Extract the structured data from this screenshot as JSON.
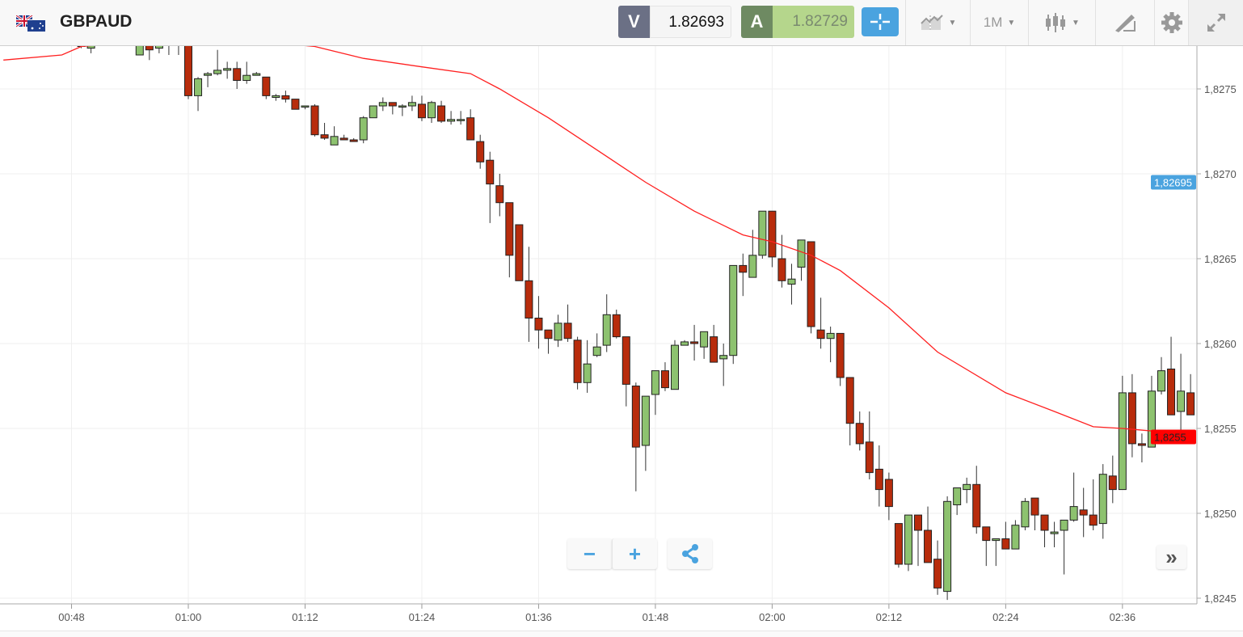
{
  "header": {
    "symbol": "GBPAUD",
    "flag_icon": "gb-au-flag-icon",
    "sell_label": "V",
    "sell_price": "1.82693",
    "buy_label": "A",
    "buy_price": "1.82729",
    "timeframe": "1M",
    "icons": [
      "crosshair-icon",
      "indicators-icon",
      "timeframe-dropdown",
      "candles-icon",
      "drawing-icon",
      "gear-icon",
      "fullscreen-icon"
    ]
  },
  "controls": {
    "zoom_out": "−",
    "zoom_in": "+",
    "share_icon": "share-icon",
    "scroll_right": "»"
  },
  "colors": {
    "up": "#8dc26f",
    "down": "#b82c0c",
    "ma": "#ff2020",
    "accent": "#4aa3df",
    "sell": "#6b7085",
    "buy_dark": "#6e8a62",
    "buy_light": "#b5d68c"
  },
  "chart_data": {
    "type": "candlestick",
    "y_ticks": [
      "1,8275",
      "1,8270",
      "1,8265",
      "1,8260",
      "1,8255",
      "1,8250",
      "1,8245"
    ],
    "y_tick_values": [
      1.8275,
      1.827,
      1.8265,
      1.826,
      1.8255,
      1.825,
      1.8245
    ],
    "x_ticks": [
      "00:48",
      "01:00",
      "01:12",
      "01:24",
      "01:36",
      "01:48",
      "02:00",
      "02:12",
      "02:24",
      "02:36"
    ],
    "grid": true,
    "price_labels": [
      {
        "text": "1,82695",
        "value": 1.82695,
        "color": "#4aa3df"
      },
      {
        "text": "1,8255",
        "value": 1.82545,
        "color": "#ff0000"
      }
    ],
    "candles_columns": [
      "time",
      "open",
      "high",
      "low",
      "close"
    ],
    "candles": [
      [
        "00:49",
        1.82777,
        1.82779,
        1.82774,
        1.82775
      ],
      [
        "00:50",
        1.82774,
        1.82779,
        1.82771,
        1.82776
      ],
      [
        "00:55",
        1.8277,
        1.8278,
        1.8277,
        1.82777
      ],
      [
        "00:56",
        1.82777,
        1.82779,
        1.82767,
        1.82773
      ],
      [
        "00:57",
        1.82774,
        1.82779,
        1.82771,
        1.82776
      ],
      [
        "00:58",
        1.82779,
        1.82783,
        1.8277,
        1.82779
      ],
      [
        "00:59",
        1.8278,
        1.82784,
        1.8277,
        1.8278
      ],
      [
        "01:00",
        1.82778,
        1.8278,
        1.82744,
        1.82746
      ],
      [
        "01:01",
        1.82746,
        1.82757,
        1.82737,
        1.82756
      ],
      [
        "01:02",
        1.82758,
        1.8276,
        1.82751,
        1.82759
      ],
      [
        "01:03",
        1.82759,
        1.82773,
        1.82758,
        1.82761
      ],
      [
        "01:04",
        1.82761,
        1.82766,
        1.82756,
        1.82762
      ],
      [
        "01:05",
        1.82762,
        1.82766,
        1.8275,
        1.82755
      ],
      [
        "01:06",
        1.82755,
        1.82766,
        1.82753,
        1.82758
      ],
      [
        "01:07",
        1.82758,
        1.8276,
        1.82758,
        1.82759
      ],
      [
        "01:08",
        1.82757,
        1.82757,
        1.82744,
        1.82746
      ],
      [
        "01:09",
        1.82745,
        1.82747,
        1.82743,
        1.82746
      ],
      [
        "01:10",
        1.82746,
        1.82749,
        1.82742,
        1.82744
      ],
      [
        "01:11",
        1.82744,
        1.82744,
        1.82738,
        1.82738
      ],
      [
        "01:12",
        1.8274,
        1.8274,
        1.82738,
        1.8274
      ],
      [
        "01:13",
        1.8274,
        1.82741,
        1.82722,
        1.82723
      ],
      [
        "01:14",
        1.82723,
        1.8273,
        1.8272,
        1.82721
      ],
      [
        "01:15",
        1.82717,
        1.82728,
        1.82717,
        1.82722
      ],
      [
        "01:16",
        1.82721,
        1.82723,
        1.8272,
        1.8272
      ],
      [
        "01:17",
        1.8272,
        1.82721,
        1.82719,
        1.82719
      ],
      [
        "01:18",
        1.8272,
        1.82734,
        1.82718,
        1.82733
      ],
      [
        "01:19",
        1.82733,
        1.8274,
        1.82733,
        1.8274
      ],
      [
        "01:20",
        1.8274,
        1.82745,
        1.82737,
        1.82742
      ],
      [
        "01:21",
        1.82742,
        1.82742,
        1.82735,
        1.8274
      ],
      [
        "01:22",
        1.8274,
        1.82741,
        1.82734,
        1.8274
      ],
      [
        "01:23",
        1.8274,
        1.82746,
        1.82737,
        1.82742
      ],
      [
        "01:24",
        1.82741,
        1.82746,
        1.82731,
        1.82733
      ],
      [
        "01:25",
        1.82733,
        1.82743,
        1.8273,
        1.82742
      ],
      [
        "01:26",
        1.8274,
        1.82743,
        1.8273,
        1.82731
      ],
      [
        "01:27",
        1.82731,
        1.82737,
        1.82729,
        1.82732
      ],
      [
        "01:28",
        1.82732,
        1.82737,
        1.82729,
        1.82732
      ],
      [
        "01:29",
        1.82733,
        1.82738,
        1.8272,
        1.8272
      ],
      [
        "01:30",
        1.82719,
        1.82723,
        1.82703,
        1.82707
      ],
      [
        "01:31",
        1.82708,
        1.82713,
        1.82671,
        1.82694
      ],
      [
        "01:32",
        1.82693,
        1.827,
        1.82675,
        1.82683
      ],
      [
        "01:33",
        1.82683,
        1.82683,
        1.82639,
        1.82652
      ],
      [
        "01:34",
        1.8267,
        1.8267,
        1.82637,
        1.82637
      ],
      [
        "01:35",
        1.82637,
        1.82657,
        1.82601,
        1.82615
      ],
      [
        "01:36",
        1.82615,
        1.82628,
        1.82597,
        1.82608
      ],
      [
        "01:37",
        1.82608,
        1.82608,
        1.82594,
        1.82603
      ],
      [
        "01:38",
        1.82602,
        1.82617,
        1.82598,
        1.82612
      ],
      [
        "01:39",
        1.82612,
        1.82623,
        1.82601,
        1.82603
      ],
      [
        "01:40",
        1.82602,
        1.82604,
        1.82573,
        1.82577
      ],
      [
        "01:41",
        1.82577,
        1.82602,
        1.82571,
        1.82588
      ],
      [
        "01:42",
        1.82593,
        1.82606,
        1.82592,
        1.82598
      ],
      [
        "01:43",
        1.82599,
        1.82629,
        1.82595,
        1.82617
      ],
      [
        "01:44",
        1.82617,
        1.8262,
        1.82603,
        1.82604
      ],
      [
        "01:45",
        1.82604,
        1.82604,
        1.82563,
        1.82576
      ],
      [
        "01:46",
        1.82575,
        1.82577,
        1.82513,
        1.82539
      ],
      [
        "01:47",
        1.8254,
        1.82569,
        1.82525,
        1.82569
      ],
      [
        "01:48",
        1.8257,
        1.82584,
        1.82558,
        1.82584
      ],
      [
        "01:49",
        1.82584,
        1.82589,
        1.82572,
        1.82574
      ],
      [
        "01:50",
        1.82573,
        1.82602,
        1.82573,
        1.82599
      ],
      [
        "01:51",
        1.82599,
        1.82602,
        1.82599,
        1.82601
      ],
      [
        "01:52",
        1.82601,
        1.82611,
        1.8259,
        1.826
      ],
      [
        "01:53",
        1.82598,
        1.82607,
        1.82591,
        1.82607
      ],
      [
        "01:54",
        1.82604,
        1.82611,
        1.82589,
        1.82589
      ],
      [
        "01:55",
        1.82591,
        1.826,
        1.82575,
        1.82593
      ],
      [
        "01:56",
        1.82593,
        1.82646,
        1.82588,
        1.82646
      ],
      [
        "01:57",
        1.82646,
        1.82653,
        1.82628,
        1.82642
      ],
      [
        "01:58",
        1.82639,
        1.82667,
        1.82639,
        1.82652
      ],
      [
        "01:59",
        1.82652,
        1.82678,
        1.8265,
        1.82678
      ],
      [
        "02:00",
        1.82678,
        1.82678,
        1.82645,
        1.82651
      ],
      [
        "02:01",
        1.8265,
        1.82664,
        1.82633,
        1.82637
      ],
      [
        "02:02",
        1.82635,
        1.82647,
        1.82623,
        1.82638
      ],
      [
        "02:03",
        1.82645,
        1.82661,
        1.82637,
        1.82661
      ],
      [
        "02:04",
        1.8266,
        1.8266,
        1.82606,
        1.8261
      ],
      [
        "02:05",
        1.82608,
        1.82627,
        1.82597,
        1.82603
      ],
      [
        "02:06",
        1.82603,
        1.8261,
        1.82589,
        1.82606
      ],
      [
        "02:07",
        1.82606,
        1.82606,
        1.82575,
        1.8258
      ],
      [
        "02:08",
        1.8258,
        1.8258,
        1.8254,
        1.82553
      ],
      [
        "02:09",
        1.82553,
        1.8256,
        1.82537,
        1.82541
      ],
      [
        "02:10",
        1.82542,
        1.8256,
        1.8252,
        1.82524
      ],
      [
        "02:11",
        1.82526,
        1.8254,
        1.82504,
        1.82514
      ],
      [
        "02:12",
        1.8252,
        1.82524,
        1.82496,
        1.82504
      ],
      [
        "02:13",
        1.82494,
        1.82494,
        1.82468,
        1.8247
      ],
      [
        "02:14",
        1.8247,
        1.82499,
        1.82466,
        1.82499
      ],
      [
        "02:15",
        1.82499,
        1.82499,
        1.82469,
        1.8249
      ],
      [
        "02:16",
        1.8249,
        1.82504,
        1.82471,
        1.82471
      ],
      [
        "02:17",
        1.82473,
        1.82484,
        1.82452,
        1.82456
      ],
      [
        "02:18",
        1.82454,
        1.8251,
        1.82449,
        1.82507
      ],
      [
        "02:19",
        1.82505,
        1.82515,
        1.82499,
        1.82515
      ],
      [
        "02:20",
        1.82514,
        1.82521,
        1.82506,
        1.82517
      ],
      [
        "02:21",
        1.82517,
        1.82528,
        1.82488,
        1.82492
      ],
      [
        "02:22",
        1.82492,
        1.82492,
        1.82469,
        1.82484
      ],
      [
        "02:23",
        1.82484,
        1.82485,
        1.82469,
        1.82485
      ],
      [
        "02:24",
        1.82485,
        1.82495,
        1.82479,
        1.82479
      ],
      [
        "02:25",
        1.82479,
        1.82496,
        1.82479,
        1.82493
      ],
      [
        "02:26",
        1.82492,
        1.82509,
        1.8249,
        1.82507
      ],
      [
        "02:27",
        1.82509,
        1.82509,
        1.8249,
        1.82499
      ],
      [
        "02:28",
        1.82499,
        1.82499,
        1.8248,
        1.8249
      ],
      [
        "02:29",
        1.82488,
        1.82495,
        1.8248,
        1.82489
      ],
      [
        "02:30",
        1.8249,
        1.82496,
        1.82464,
        1.82496
      ],
      [
        "02:31",
        1.82496,
        1.82524,
        1.82495,
        1.82504
      ],
      [
        "02:32",
        1.82502,
        1.82515,
        1.82486,
        1.82499
      ],
      [
        "02:33",
        1.82499,
        1.8252,
        1.8249,
        1.82493
      ],
      [
        "02:34",
        1.82494,
        1.82529,
        1.82485,
        1.82523
      ],
      [
        "02:35",
        1.82522,
        1.82534,
        1.82506,
        1.82514
      ],
      [
        "02:36",
        1.82514,
        1.82581,
        1.82514,
        1.82571
      ],
      [
        "02:37",
        1.82571,
        1.82582,
        1.82533,
        1.82541
      ],
      [
        "02:38",
        1.82541,
        1.82547,
        1.8253,
        1.8254
      ],
      [
        "02:39",
        1.82539,
        1.82581,
        1.82539,
        1.82572
      ],
      [
        "02:40",
        1.82572,
        1.82592,
        1.8257,
        1.82584
      ],
      [
        "02:41",
        1.82585,
        1.82604,
        1.82558,
        1.82558
      ],
      [
        "02:42",
        1.8256,
        1.82594,
        1.82545,
        1.82572
      ],
      [
        "02:43",
        1.82571,
        1.82582,
        1.82558,
        1.82558
      ]
    ],
    "moving_average": [
      [
        "00:41",
        1.82767
      ],
      [
        "00:47",
        1.8277
      ],
      [
        "00:49",
        1.82775
      ],
      [
        "00:55",
        1.82778
      ],
      [
        "01:02",
        1.82781
      ],
      [
        "01:13",
        1.82775
      ],
      [
        "01:18",
        1.82768
      ],
      [
        "01:24",
        1.82763
      ],
      [
        "01:29",
        1.82759
      ],
      [
        "01:32",
        1.8275
      ],
      [
        "01:37",
        1.82733
      ],
      [
        "01:42",
        1.82714
      ],
      [
        "01:47",
        1.82695
      ],
      [
        "01:52",
        1.82678
      ],
      [
        "01:57",
        1.82664
      ],
      [
        "02:00",
        1.8266
      ],
      [
        "02:04",
        1.82652
      ],
      [
        "02:07",
        1.82643
      ],
      [
        "02:12",
        1.82621
      ],
      [
        "02:17",
        1.82595
      ],
      [
        "02:24",
        1.82571
      ],
      [
        "02:29",
        1.8256
      ],
      [
        "02:33",
        1.82551
      ],
      [
        "02:36",
        1.8255
      ],
      [
        "02:40",
        1.82548
      ],
      [
        "02:43",
        1.82544
      ]
    ]
  }
}
